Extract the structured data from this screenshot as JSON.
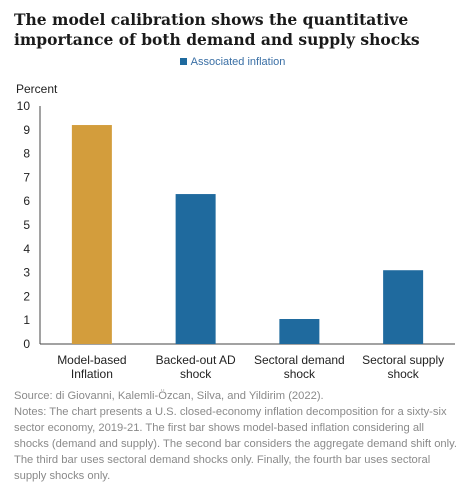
{
  "header": {
    "title": "The model calibration shows the quantitative importance of both demand and supply shocks"
  },
  "chart_data": {
    "type": "bar",
    "categories": [
      [
        "Model-based",
        "Inflation"
      ],
      [
        "Backed-out AD",
        "shock"
      ],
      [
        "Sectoral demand",
        "shock"
      ],
      [
        "Sectoral supply",
        "shock"
      ]
    ],
    "series": [
      {
        "name": "Associated inflation",
        "values": [
          9.2,
          6.3,
          1.05,
          3.1
        ]
      }
    ],
    "ylabel": "Percent",
    "ylim": [
      0,
      10
    ],
    "yticks": [
      0,
      1,
      2,
      3,
      4,
      5,
      6,
      7,
      8,
      9,
      10
    ],
    "grid": false,
    "legend_position": "top-center",
    "colors": {
      "first_bar": "#d39d3c",
      "bars": "#1f6a9e",
      "axis": "#444444",
      "legend_text": "#3a6fa5"
    }
  },
  "footer": {
    "source": "Source: di Giovanni, Kalemli-Özcan, Silva, and Yildirim (2022).",
    "notes": "Notes: The chart presents a U.S. closed-economy inflation decomposition for a sixty-six sector economy, 2019-21. The first bar shows model-based inflation considering all shocks (demand and supply). The second bar considers the aggregate demand shift only. The third bar uses sectoral demand shocks only. Finally, the fourth bar uses sectoral supply shocks only."
  }
}
